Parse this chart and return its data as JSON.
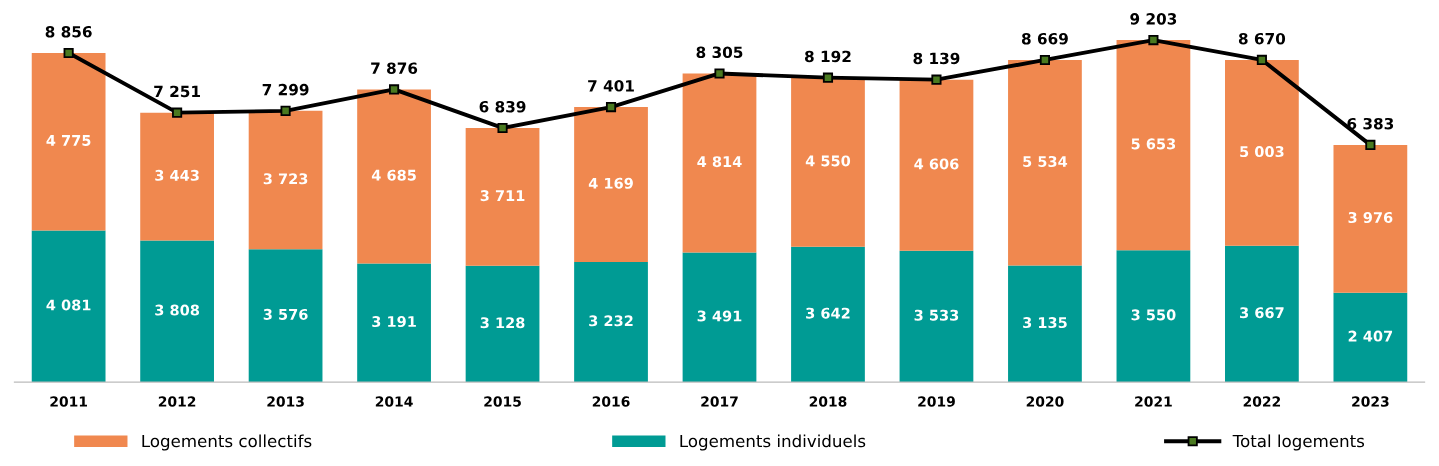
{
  "chart_data": {
    "type": "bar",
    "stacked": true,
    "data_labels": true,
    "legend": "bottom",
    "grid": false,
    "tick_labels": "x",
    "categories": [
      "2011",
      "2012",
      "2013",
      "2014",
      "2015",
      "2016",
      "2017",
      "2018",
      "2019",
      "2020",
      "2021",
      "2022",
      "2023"
    ],
    "series": [
      {
        "name": "Logements individuels",
        "color": "#009b94",
        "values": [
          4081,
          3808,
          3576,
          3191,
          3128,
          3232,
          3491,
          3642,
          3533,
          3135,
          3550,
          3667,
          2407
        ]
      },
      {
        "name": "Logements collectifs",
        "color": "#f0884f",
        "values": [
          4775,
          3443,
          3723,
          4685,
          3711,
          4169,
          4814,
          4550,
          4606,
          5534,
          5653,
          5003,
          3976
        ]
      },
      {
        "name": "Total logements",
        "type": "line",
        "color": "#000000",
        "marker": "square",
        "line_style": "solid",
        "values": [
          8856,
          7251,
          7299,
          7876,
          6839,
          7401,
          8305,
          8192,
          8139,
          8669,
          9203,
          8670,
          6383
        ]
      }
    ]
  }
}
